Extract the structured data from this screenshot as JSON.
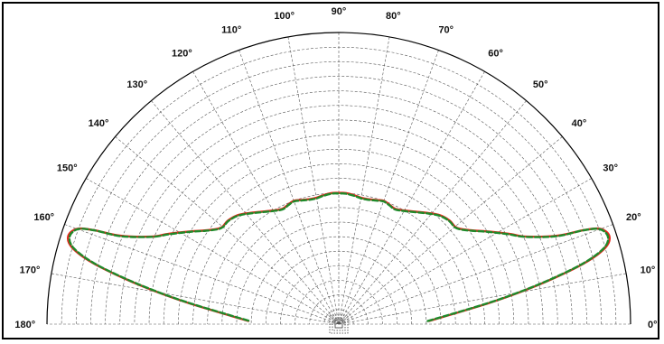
{
  "chart_data": {
    "type": "polar",
    "title": "",
    "angle_range_deg": [
      0,
      180
    ],
    "angle_ticks": [
      "0°",
      "10°",
      "20°",
      "30°",
      "40°",
      "50°",
      "60°",
      "70°",
      "80°",
      "90°",
      "100°",
      "110°",
      "120°",
      "130°",
      "140°",
      "150°",
      "160°",
      "170°",
      "180°"
    ],
    "radial_range": [
      0,
      1
    ],
    "radial_grid_levels": [
      0.05,
      0.1,
      0.15,
      0.2,
      0.25,
      0.3,
      0.35,
      0.4,
      0.45,
      0.5,
      0.55,
      0.6,
      0.65,
      0.7,
      0.75,
      0.8,
      0.85,
      0.9,
      0.95
    ],
    "grid": true,
    "colors": {
      "series_1": "#e8261c",
      "series_2": "#1f8a2a",
      "grid": "#555555",
      "axis": "#000000"
    },
    "series": [
      {
        "line_style": "solid",
        "color": "#e8261c",
        "points": [
          [
            2,
            0.31
          ],
          [
            5,
            0.39
          ],
          [
            8,
            0.52
          ],
          [
            10,
            0.63
          ],
          [
            12,
            0.75
          ],
          [
            14,
            0.87
          ],
          [
            16,
            0.95
          ],
          [
            18,
            0.975
          ],
          [
            20,
            0.955
          ],
          [
            21,
            0.9
          ],
          [
            22,
            0.81
          ],
          [
            25,
            0.71
          ],
          [
            28,
            0.66
          ],
          [
            32,
            0.6
          ],
          [
            35,
            0.56
          ],
          [
            38,
            0.53
          ],
          [
            40,
            0.52
          ],
          [
            43,
            0.52
          ],
          [
            47,
            0.51
          ],
          [
            51,
            0.49
          ],
          [
            55,
            0.47
          ],
          [
            60,
            0.45
          ],
          [
            64,
            0.44
          ],
          [
            67,
            0.445
          ],
          [
            70,
            0.45
          ],
          [
            73,
            0.445
          ],
          [
            77,
            0.44
          ],
          [
            80,
            0.44
          ],
          [
            83,
            0.445
          ],
          [
            87,
            0.45
          ],
          [
            90,
            0.45
          ],
          [
            93,
            0.45
          ],
          [
            97,
            0.445
          ],
          [
            100,
            0.44
          ],
          [
            103,
            0.44
          ],
          [
            107,
            0.445
          ],
          [
            110,
            0.45
          ],
          [
            113,
            0.445
          ],
          [
            116,
            0.44
          ],
          [
            120,
            0.45
          ],
          [
            125,
            0.47
          ],
          [
            129,
            0.49
          ],
          [
            133,
            0.51
          ],
          [
            137,
            0.52
          ],
          [
            140,
            0.52
          ],
          [
            142,
            0.53
          ],
          [
            145,
            0.56
          ],
          [
            148,
            0.6
          ],
          [
            152,
            0.66
          ],
          [
            155,
            0.71
          ],
          [
            158,
            0.81
          ],
          [
            159,
            0.9
          ],
          [
            160,
            0.955
          ],
          [
            162,
            0.975
          ],
          [
            164,
            0.95
          ],
          [
            166,
            0.87
          ],
          [
            168,
            0.75
          ],
          [
            170,
            0.63
          ],
          [
            172,
            0.52
          ],
          [
            175,
            0.39
          ],
          [
            178,
            0.31
          ]
        ]
      },
      {
        "line_style": "dashed",
        "color": "#1f8a2a",
        "points": [
          [
            2,
            0.305
          ],
          [
            5,
            0.385
          ],
          [
            8,
            0.515
          ],
          [
            10,
            0.625
          ],
          [
            12,
            0.745
          ],
          [
            14,
            0.865
          ],
          [
            16,
            0.945
          ],
          [
            18,
            0.97
          ],
          [
            20,
            0.952
          ],
          [
            21,
            0.898
          ],
          [
            22,
            0.805
          ],
          [
            25,
            0.708
          ],
          [
            28,
            0.657
          ],
          [
            32,
            0.598
          ],
          [
            35,
            0.558
          ],
          [
            38,
            0.528
          ],
          [
            40,
            0.518
          ],
          [
            43,
            0.518
          ],
          [
            47,
            0.508
          ],
          [
            51,
            0.488
          ],
          [
            55,
            0.468
          ],
          [
            60,
            0.448
          ],
          [
            64,
            0.438
          ],
          [
            67,
            0.443
          ],
          [
            70,
            0.448
          ],
          [
            73,
            0.443
          ],
          [
            77,
            0.438
          ],
          [
            80,
            0.438
          ],
          [
            83,
            0.443
          ],
          [
            87,
            0.448
          ],
          [
            90,
            0.448
          ],
          [
            93,
            0.448
          ],
          [
            97,
            0.443
          ],
          [
            100,
            0.438
          ],
          [
            103,
            0.438
          ],
          [
            107,
            0.443
          ],
          [
            110,
            0.448
          ],
          [
            113,
            0.443
          ],
          [
            116,
            0.438
          ],
          [
            120,
            0.448
          ],
          [
            125,
            0.468
          ],
          [
            129,
            0.488
          ],
          [
            133,
            0.508
          ],
          [
            137,
            0.518
          ],
          [
            140,
            0.518
          ],
          [
            142,
            0.528
          ],
          [
            145,
            0.558
          ],
          [
            148,
            0.598
          ],
          [
            152,
            0.657
          ],
          [
            155,
            0.708
          ],
          [
            158,
            0.805
          ],
          [
            159,
            0.898
          ],
          [
            160,
            0.952
          ],
          [
            162,
            0.97
          ],
          [
            164,
            0.945
          ],
          [
            166,
            0.865
          ],
          [
            168,
            0.745
          ],
          [
            170,
            0.625
          ],
          [
            172,
            0.515
          ],
          [
            175,
            0.385
          ],
          [
            178,
            0.305
          ]
        ]
      }
    ]
  }
}
